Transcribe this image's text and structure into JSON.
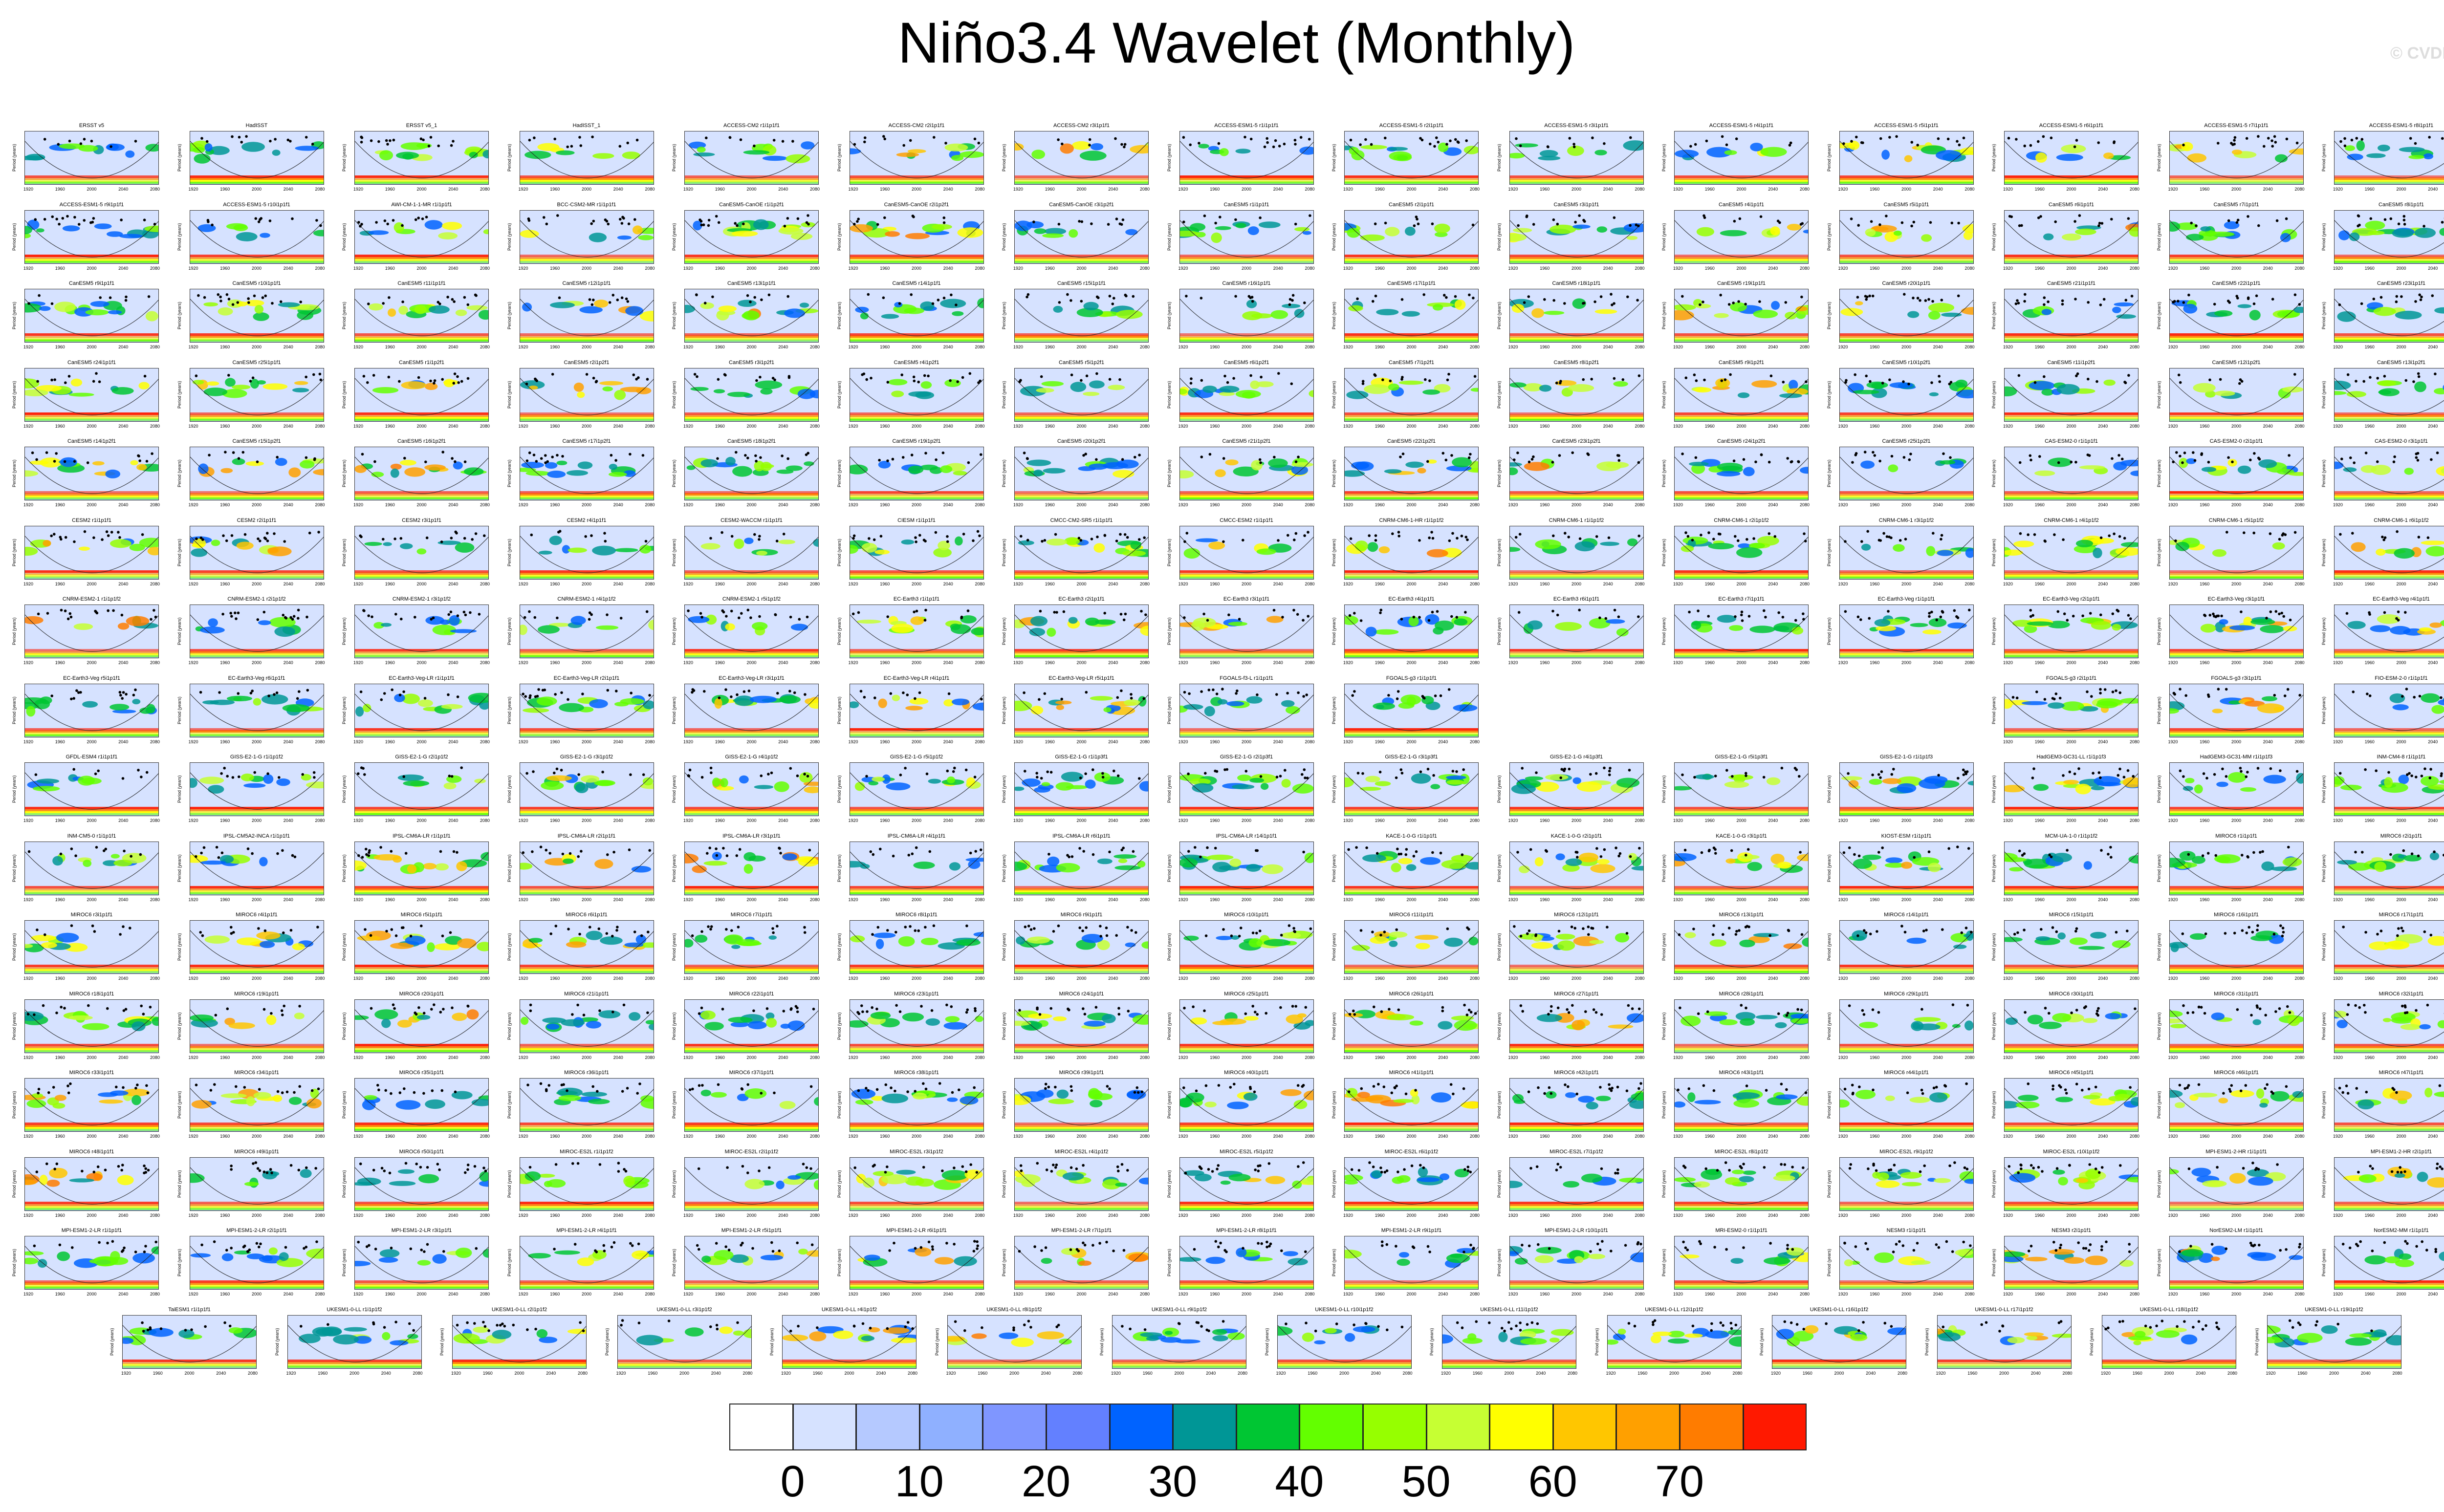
{
  "title": "Niño3.4 Wavelet (Monthly)",
  "credit": "© CVDP",
  "panel_axis_label": "Period (years)",
  "panel_names": [
    "ERSST v5",
    "HadISST",
    "ERSST v5_1",
    "HadISST_1",
    "ACCESS-CM2 r1i1p1f1",
    "ACCESS-CM2 r2i1p1f1",
    "ACCESS-CM2 r3i1p1f1",
    "ACCESS-ESM1-5 r1i1p1f1",
    "ACCESS-ESM1-5 r2i1p1f1",
    "ACCESS-ESM1-5 r3i1p1f1",
    "ACCESS-ESM1-5 r4i1p1f1",
    "ACCESS-ESM1-5 r5i1p1f1",
    "ACCESS-ESM1-5 r6i1p1f1",
    "ACCESS-ESM1-5 r7i1p1f1",
    "ACCESS-ESM1-5 r8i1p1f1",
    "ACCESS-ESM1-5 r9i1p1f1",
    "ACCESS-ESM1-5 r10i1p1f1",
    "AWI-CM-1-1-MR r1i1p1f1",
    "BCC-CSM2-MR r1i1p1f1",
    "CanESM5-CanOE r1i1p2f1",
    "CanESM5-CanOE r2i1p2f1",
    "CanESM5-CanOE r3i1p2f1",
    "CanESM5 r1i1p1f1",
    "CanESM5 r2i1p1f1",
    "CanESM5 r3i1p1f1",
    "CanESM5 r4i1p1f1",
    "CanESM5 r5i1p1f1",
    "CanESM5 r6i1p1f1",
    "CanESM5 r7i1p1f1",
    "CanESM5 r8i1p1f1",
    "CanESM5 r9i1p1f1",
    "CanESM5 r10i1p1f1",
    "CanESM5 r11i1p1f1",
    "CanESM5 r12i1p1f1",
    "CanESM5 r13i1p1f1",
    "CanESM5 r14i1p1f1",
    "CanESM5 r15i1p1f1",
    "CanESM5 r16i1p1f1",
    "CanESM5 r17i1p1f1",
    "CanESM5 r18i1p1f1",
    "CanESM5 r19i1p1f1",
    "CanESM5 r20i1p1f1",
    "CanESM5 r21i1p1f1",
    "CanESM5 r22i1p1f1",
    "CanESM5 r23i1p1f1",
    "CanESM5 r24i1p1f1",
    "CanESM5 r25i1p1f1",
    "CanESM5 r1i1p2f1",
    "CanESM5 r2i1p2f1",
    "CanESM5 r3i1p2f1",
    "CanESM5 r4i1p2f1",
    "CanESM5 r5i1p2f1",
    "CanESM5 r6i1p2f1",
    "CanESM5 r7i1p2f1",
    "CanESM5 r8i1p2f1",
    "CanESM5 r9i1p2f1",
    "CanESM5 r10i1p2f1",
    "CanESM5 r11i1p2f1",
    "CanESM5 r12i1p2f1",
    "CanESM5 r13i1p2f1",
    "CanESM5 r14i1p2f1",
    "CanESM5 r15i1p2f1",
    "CanESM5 r16i1p2f1",
    "CanESM5 r17i1p2f1",
    "CanESM5 r18i1p2f1",
    "CanESM5 r19i1p2f1",
    "CanESM5 r20i1p2f1",
    "CanESM5 r21i1p2f1",
    "CanESM5 r22i1p2f1",
    "CanESM5 r23i1p2f1",
    "CanESM5 r24i1p2f1",
    "CanESM5 r25i1p2f1",
    "CAS-ESM2-0 r1i1p1f1",
    "CAS-ESM2-0 r2i1p1f1",
    "CAS-ESM2-0 r3i1p1f1",
    "CESM2 r1i1p1f1",
    "CESM2 r2i1p1f1",
    "CESM2 r3i1p1f1",
    "CESM2 r4i1p1f1",
    "CESM2-WACCM r1i1p1f1",
    "CIESM r1i1p1f1",
    "CMCC-CM2-SR5 r1i1p1f1",
    "CMCC-ESM2 r1i1p1f1",
    "CNRM-CM6-1-HR r1i1p1f2",
    "CNRM-CM6-1 r1i1p1f2",
    "CNRM-CM6-1 r2i1p1f2",
    "CNRM-CM6-1 r3i1p1f2",
    "CNRM-CM6-1 r4i1p1f2",
    "CNRM-CM6-1 r5i1p1f2",
    "CNRM-CM6-1 r6i1p1f2",
    "CNRM-ESM2-1 r1i1p1f2",
    "CNRM-ESM2-1 r2i1p1f2",
    "CNRM-ESM2-1 r3i1p1f2",
    "CNRM-ESM2-1 r4i1p1f2",
    "CNRM-ESM2-1 r5i1p1f2",
    "EC-Earth3 r1i1p1f1",
    "EC-Earth3 r2i1p1f1",
    "EC-Earth3 r3i1p1f1",
    "EC-Earth3 r4i1p1f1",
    "EC-Earth3 r6i1p1f1",
    "EC-Earth3 r7i1p1f1",
    "EC-Earth3-Veg r1i1p1f1",
    "EC-Earth3-Veg r2i1p1f1",
    "EC-Earth3-Veg r3i1p1f1",
    "EC-Earth3-Veg r4i1p1f1",
    "EC-Earth3-Veg r5i1p1f1",
    "EC-Earth3-Veg r6i1p1f1",
    "EC-Earth3-Veg-LR r1i1p1f1",
    "EC-Earth3-Veg-LR r2i1p1f1",
    "EC-Earth3-Veg-LR r3i1p1f1",
    "EC-Earth3-Veg-LR r4i1p1f1",
    "EC-Earth3-Veg-LR r5i1p1f1",
    "FGOALS-f3-L r1i1p1f1",
    "FGOALS-g3 r1i1p1f1",
    "",
    "",
    "",
    "FGOALS-g3 r2i1p1f1",
    "FGOALS-g3 r3i1p1f1",
    "FIO-ESM-2-0 r1i1p1f1",
    "GFDL-ESM4 r1i1p1f1",
    "GISS-E2-1-G r1i1p1f2",
    "GISS-E2-1-G r2i1p1f2",
    "GISS-E2-1-G r3i1p1f2",
    "GISS-E2-1-G r4i1p1f2",
    "GISS-E2-1-G r5i1p1f2",
    "GISS-E2-1-G r1i1p3f1",
    "GISS-E2-1-G r2i1p3f1",
    "GISS-E2-1-G r3i1p3f1",
    "GISS-E2-1-G r4i1p3f1",
    "GISS-E2-1-G r5i1p3f1",
    "GISS-E2-1-G r1i1p1f3",
    "HadGEM3-GC31-LL r1i1p1f3",
    "HadGEM3-GC31-MM r1i1p1f3",
    "INM-CM4-8 r1i1p1f1",
    "INM-CM5-0 r1i1p1f1",
    "IPSL-CM5A2-INCA r1i1p1f1",
    "IPSL-CM6A-LR r1i1p1f1",
    "IPSL-CM6A-LR r2i1p1f1",
    "IPSL-CM6A-LR r3i1p1f1",
    "IPSL-CM6A-LR r4i1p1f1",
    "IPSL-CM6A-LR r6i1p1f1",
    "IPSL-CM6A-LR r14i1p1f1",
    "KACE-1-0-G r1i1p1f1",
    "KACE-1-0-G r2i1p1f1",
    "KACE-1-0-G r3i1p1f1",
    "KIOST-ESM r1i1p1f1",
    "MCM-UA-1-0 r1i1p1f2",
    "MIROC6 r1i1p1f1",
    "MIROC6 r2i1p1f1",
    "MIROC6 r3i1p1f1",
    "MIROC6 r4i1p1f1",
    "MIROC6 r5i1p1f1",
    "MIROC6 r6i1p1f1",
    "MIROC6 r7i1p1f1",
    "MIROC6 r8i1p1f1",
    "MIROC6 r9i1p1f1",
    "MIROC6 r10i1p1f1",
    "MIROC6 r11i1p1f1",
    "MIROC6 r12i1p1f1",
    "MIROC6 r13i1p1f1",
    "MIROC6 r14i1p1f1",
    "MIROC6 r15i1p1f1",
    "MIROC6 r16i1p1f1",
    "MIROC6 r17i1p1f1",
    "MIROC6 r18i1p1f1",
    "MIROC6 r19i1p1f1",
    "MIROC6 r20i1p1f1",
    "MIROC6 r21i1p1f1",
    "MIROC6 r22i1p1f1",
    "MIROC6 r23i1p1f1",
    "MIROC6 r24i1p1f1",
    "MIROC6 r25i1p1f1",
    "MIROC6 r26i1p1f1",
    "MIROC6 r27i1p1f1",
    "MIROC6 r28i1p1f1",
    "MIROC6 r29i1p1f1",
    "MIROC6 r30i1p1f1",
    "MIROC6 r31i1p1f1",
    "MIROC6 r32i1p1f1",
    "MIROC6 r33i1p1f1",
    "MIROC6 r34i1p1f1",
    "MIROC6 r35i1p1f1",
    "MIROC6 r36i1p1f1",
    "MIROC6 r37i1p1f1",
    "MIROC6 r38i1p1f1",
    "MIROC6 r39i1p1f1",
    "MIROC6 r40i1p1f1",
    "MIROC6 r41i1p1f1",
    "MIROC6 r42i1p1f1",
    "MIROC6 r43i1p1f1",
    "MIROC6 r44i1p1f1",
    "MIROC6 r45i1p1f1",
    "MIROC6 r46i1p1f1",
    "MIROC6 r47i1p1f1",
    "MIROC6 r48i1p1f1",
    "MIROC6 r49i1p1f1",
    "MIROC6 r50i1p1f1",
    "MIROC-ES2L r1i1p1f2",
    "MIROC-ES2L r2i1p1f2",
    "MIROC-ES2L r3i1p1f2",
    "MIROC-ES2L r4i1p1f2",
    "MIROC-ES2L r5i1p1f2",
    "MIROC-ES2L r6i1p1f2",
    "MIROC-ES2L r7i1p1f2",
    "MIROC-ES2L r8i1p1f2",
    "MIROC-ES2L r9i1p1f2",
    "MIROC-ES2L r10i1p1f2",
    "MPI-ESM1-2-HR r1i1p1f1",
    "MPI-ESM1-2-HR r2i1p1f1",
    "MPI-ESM1-2-LR r1i1p1f1",
    "MPI-ESM1-2-LR r2i1p1f1",
    "MPI-ESM1-2-LR r3i1p1f1",
    "MPI-ESM1-2-LR r4i1p1f1",
    "MPI-ESM1-2-LR r5i1p1f1",
    "MPI-ESM1-2-LR r6i1p1f1",
    "MPI-ESM1-2-LR r7i1p1f1",
    "MPI-ESM1-2-LR r8i1p1f1",
    "MPI-ESM1-2-LR r9i1p1f1",
    "MPI-ESM1-2-LR r10i1p1f1",
    "MRI-ESM2-0 r1i1p1f1",
    "NESM3 r1i1p1f1",
    "NESM3 r2i1p1f1",
    "NorESM2-LM r1i1p1f1",
    "NorESM2-MM r1i1p1f1",
    "TaiESM1 r1i1p1f1",
    "UKESM1-0-LL r1i1p1f2",
    "UKESM1-0-LL r2i1p1f2",
    "UKESM1-0-LL r3i1p1f2",
    "UKESM1-0-LL r4i1p1f2",
    "UKESM1-0-LL r8i1p1f2",
    "UKESM1-0-LL r9i1p1f2",
    "UKESM1-0-LL r10i1p1f2",
    "UKESM1-0-LL r11i1p1f2",
    "UKESM1-0-LL r12i1p1f2",
    "UKESM1-0-LL r16i1p1f2",
    "UKESM1-0-LL r17i1p1f2",
    "UKESM1-0-LL r18i1p1f2",
    "UKESM1-0-LL r19i1p1f2"
  ],
  "chart_data": {
    "type": "heatmap",
    "title": "Niño3.4 Wavelet (Monthly)",
    "panel_ylabel": "Period (years)",
    "panel_xticks": [
      "1920",
      "1960",
      "2000",
      "2040",
      "2080"
    ],
    "colorbar": {
      "levels": [
        0,
        5,
        10,
        15,
        20,
        25,
        30,
        35,
        40,
        45,
        50,
        55,
        60,
        65,
        70,
        75
      ],
      "tick_labels": [
        "0",
        "10",
        "20",
        "30",
        "40",
        "50",
        "60",
        "70"
      ],
      "colors": [
        "#ffffff",
        "#d6e2ff",
        "#b5c9ff",
        "#8fb0ff",
        "#7f96ff",
        "#6380ff",
        "#0063ff",
        "#009696",
        "#00c633",
        "#63ff00",
        "#96ff00",
        "#c6ff33",
        "#ffff00",
        "#ffc600",
        "#ffa000",
        "#ff7c00",
        "#ff1900"
      ]
    }
  }
}
